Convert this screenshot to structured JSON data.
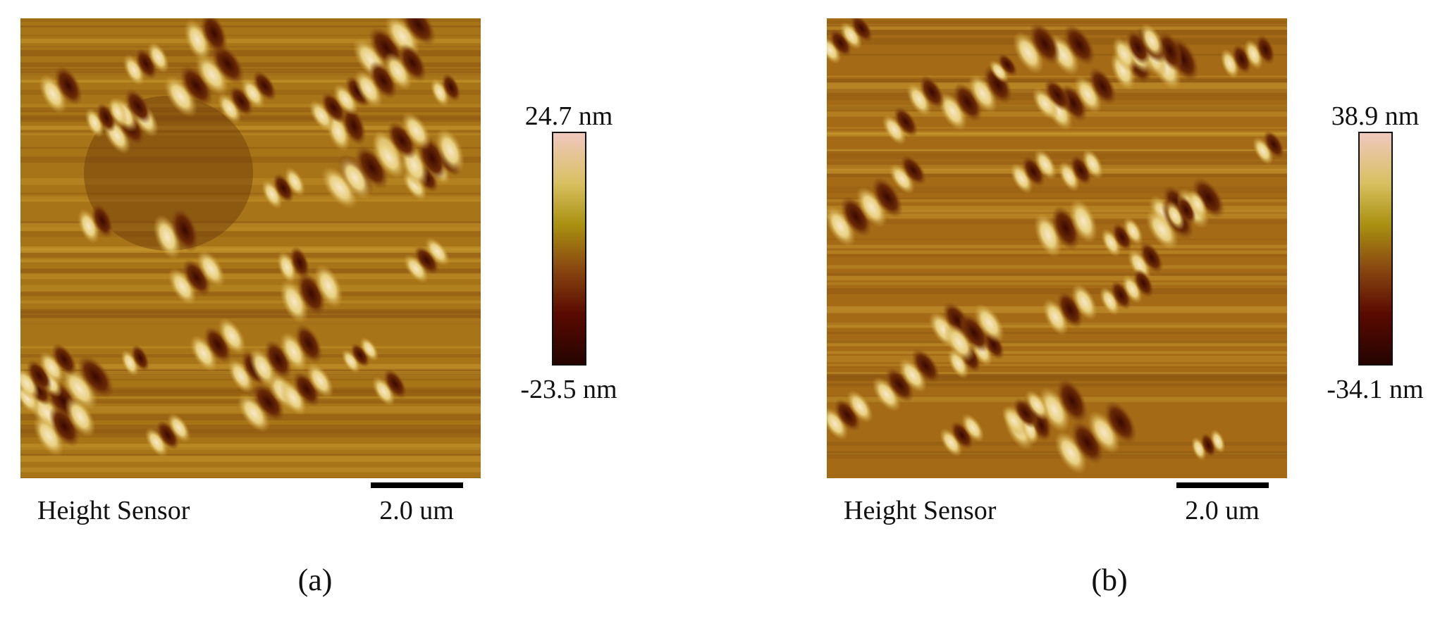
{
  "panels": [
    {
      "caption": "(a)",
      "sensor": "Height Sensor",
      "scale_bar": "2.0 um",
      "color_max": "24.7 nm",
      "color_min": "-23.5 nm"
    },
    {
      "caption": "(b)",
      "sensor": "Height Sensor",
      "scale_bar": "2.0 um",
      "color_max": "38.9 nm",
      "color_min": "-34.1 nm"
    }
  ]
}
